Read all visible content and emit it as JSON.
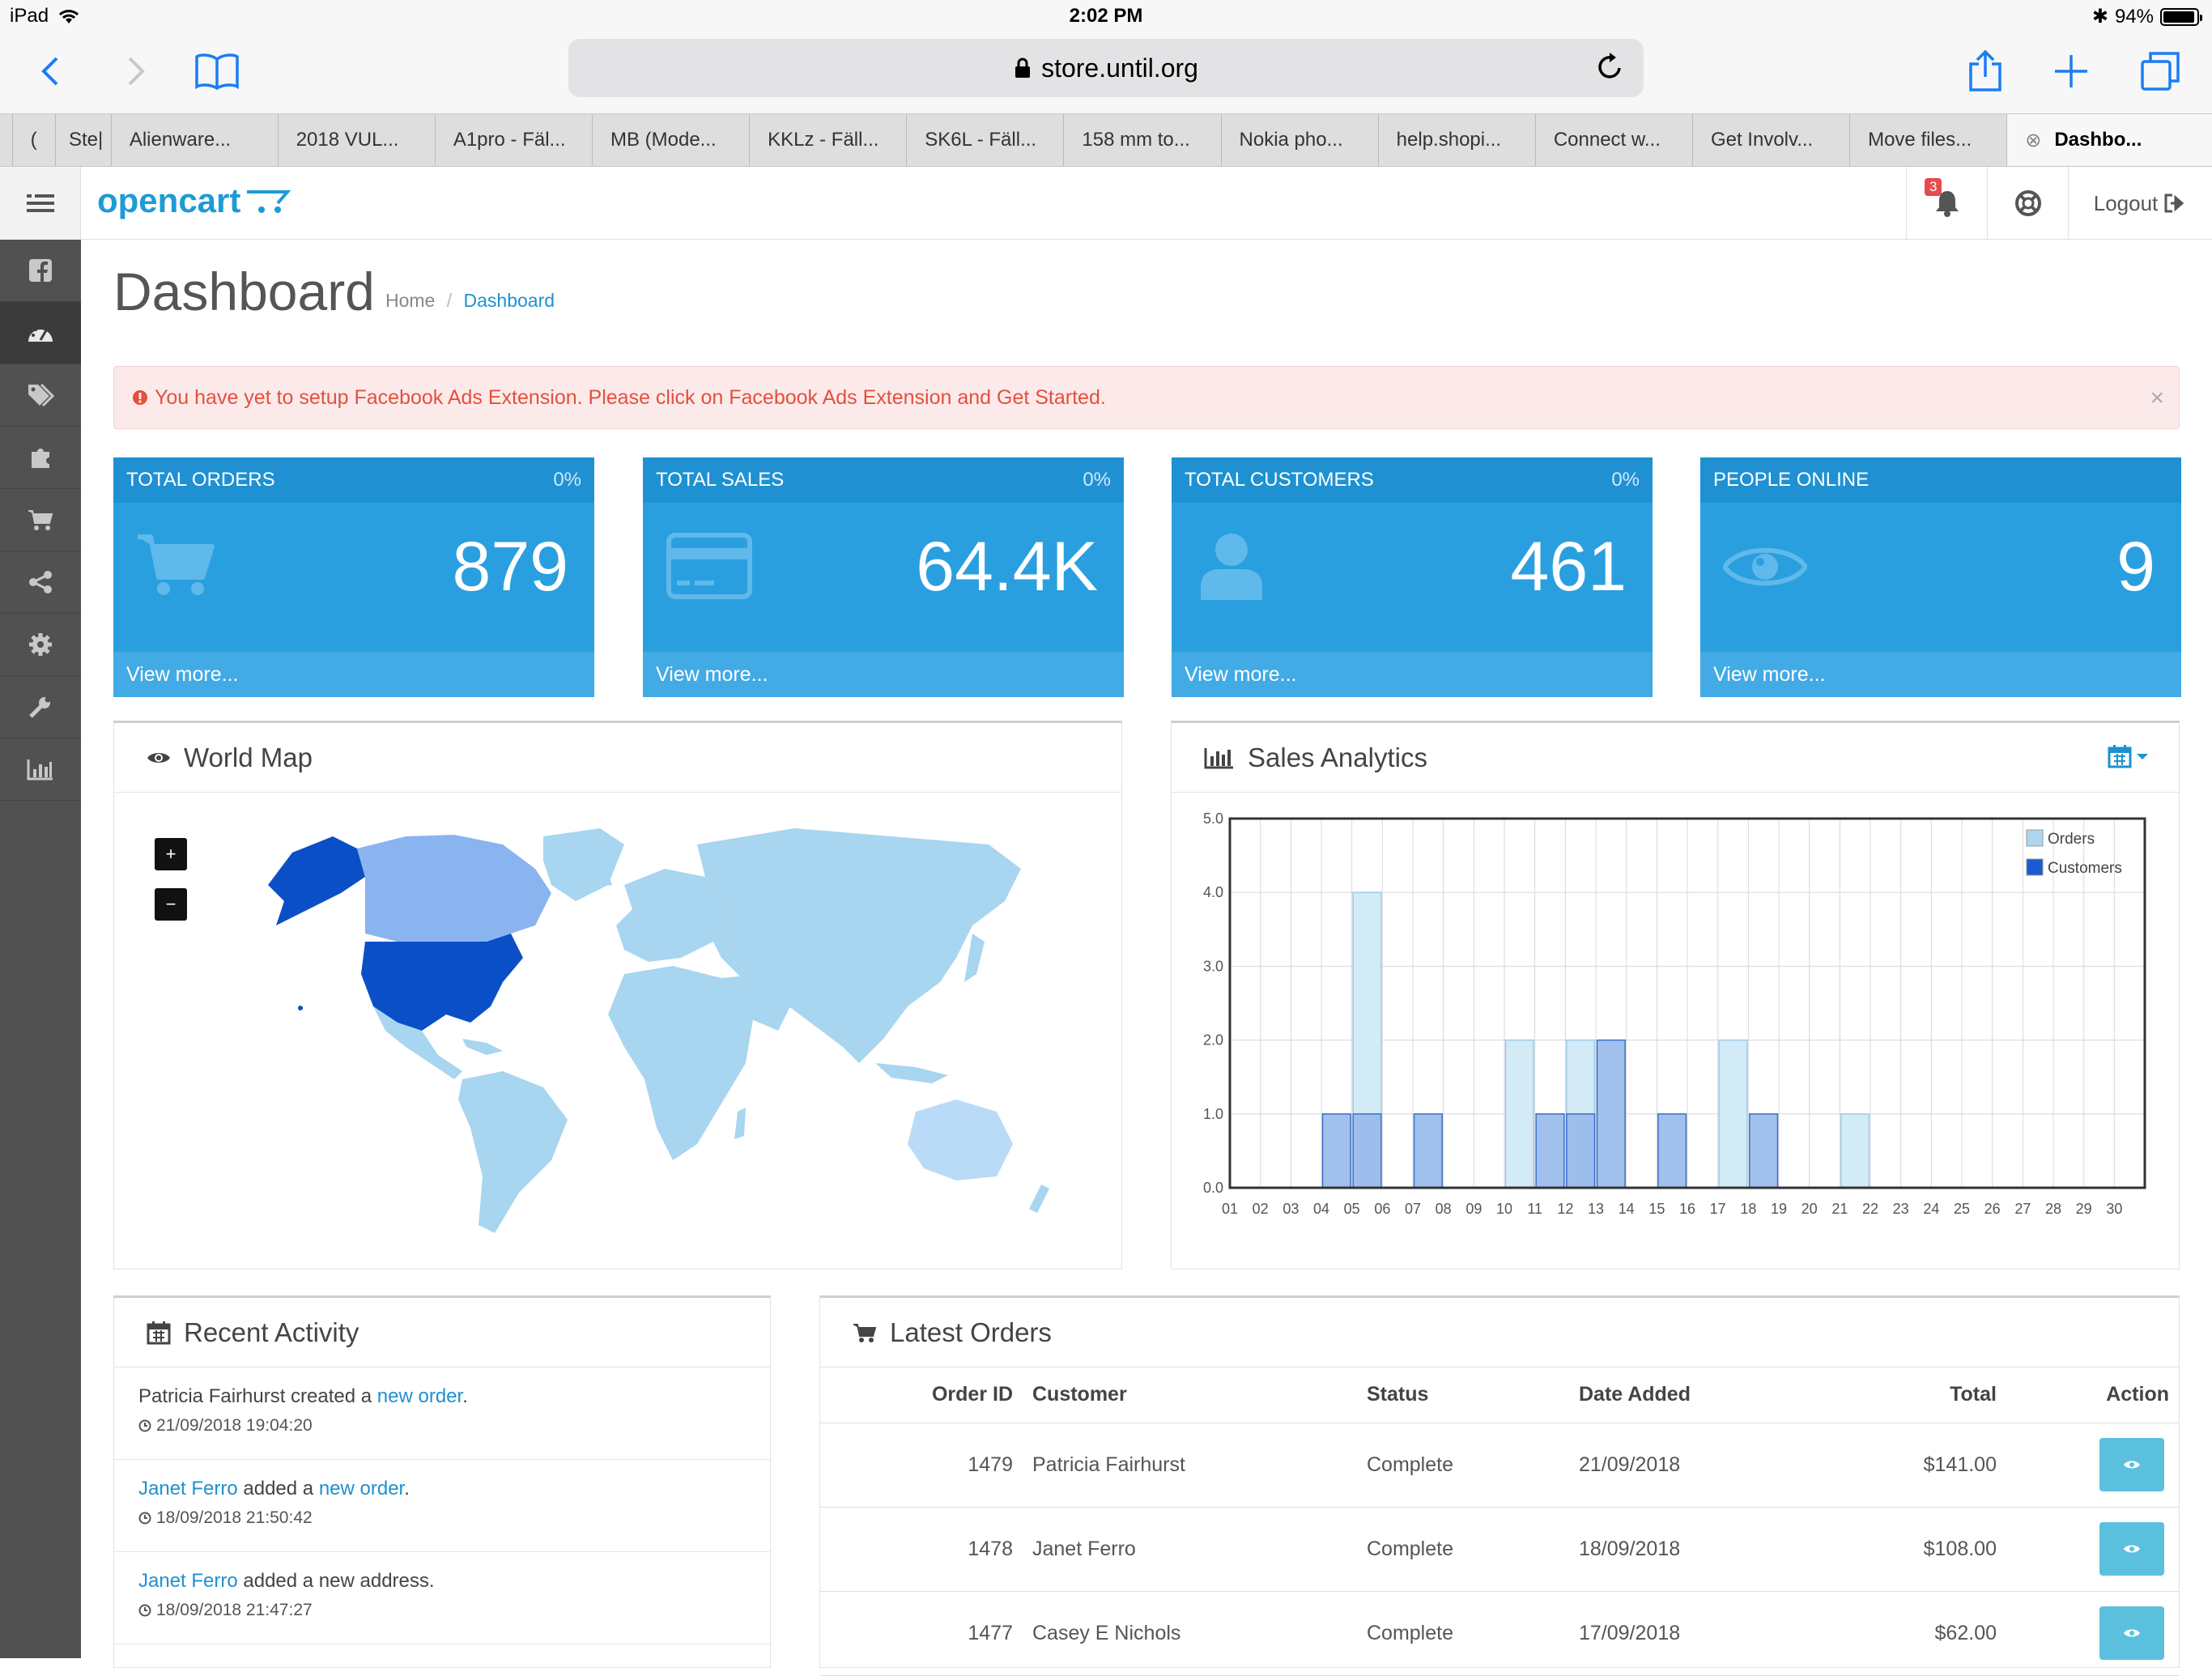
{
  "status_bar": {
    "device": "iPad",
    "time": "2:02 PM",
    "battery": "94%",
    "battery_level": 0.94
  },
  "browser": {
    "url": "store.until.org"
  },
  "tabs": [
    {
      "label": "("
    },
    {
      "label": "Ste|"
    },
    {
      "label": "Alienware..."
    },
    {
      "label": "2018 VUL..."
    },
    {
      "label": "A1pro - Fäl..."
    },
    {
      "label": "MB (Mode..."
    },
    {
      "label": "KKLz - Fäll..."
    },
    {
      "label": "SK6L - Fäll..."
    },
    {
      "label": "158 mm to..."
    },
    {
      "label": "Nokia pho..."
    },
    {
      "label": "help.shopi..."
    },
    {
      "label": "Connect w..."
    },
    {
      "label": "Get Involv..."
    },
    {
      "label": "Move files..."
    },
    {
      "label": "Dashbo..."
    }
  ],
  "header": {
    "logo": "opencart",
    "notification_count": "3",
    "logout": "Logout"
  },
  "sidebar": {
    "icons": [
      "facebook-icon",
      "dashboard-icon",
      "tags-icon",
      "puzzle-icon",
      "cart-icon",
      "share-icon",
      "cog-icon",
      "wrench-icon",
      "bar-chart-icon"
    ]
  },
  "page": {
    "title": "Dashboard",
    "breadcrumb": [
      "Home",
      "Dashboard"
    ]
  },
  "alert": {
    "text": "You have yet to setup Facebook Ads Extension. Please click on Facebook Ads Extension and Get Started."
  },
  "tiles": [
    {
      "title": "TOTAL ORDERS",
      "percent": "0%",
      "value": "879",
      "link": "View more...",
      "icon": "cart-icon"
    },
    {
      "title": "TOTAL SALES",
      "percent": "0%",
      "value": "64.4K",
      "link": "View more...",
      "icon": "credit-card-icon"
    },
    {
      "title": "TOTAL CUSTOMERS",
      "percent": "0%",
      "value": "461",
      "link": "View more...",
      "icon": "user-icon"
    },
    {
      "title": "PEOPLE ONLINE",
      "percent": "",
      "value": "9",
      "link": "View more...",
      "icon": "eye-icon"
    }
  ],
  "world_map": {
    "title": "World Map",
    "zoom_in": "+",
    "zoom_out": "−",
    "colors": {
      "us": "#0b4fc7",
      "canada": "#8ab4f0",
      "default": "#a8d5f0",
      "australia": "#b9dbf7"
    }
  },
  "sales_chart": {
    "title": "Sales Analytics"
  },
  "chart_data": {
    "type": "bar",
    "categories": [
      "01",
      "02",
      "03",
      "04",
      "05",
      "06",
      "07",
      "08",
      "09",
      "10",
      "11",
      "12",
      "13",
      "14",
      "15",
      "16",
      "17",
      "18",
      "19",
      "20",
      "21",
      "22",
      "23",
      "24",
      "25",
      "26",
      "27",
      "28",
      "29",
      "30"
    ],
    "series": [
      {
        "name": "Orders",
        "color": "#d3eaf7",
        "values": [
          0,
          0,
          0,
          0,
          4,
          0,
          0,
          0,
          0,
          2,
          0,
          2,
          0,
          0,
          0,
          0,
          2,
          0,
          0,
          0,
          1,
          0,
          0,
          0,
          0,
          0,
          0,
          0,
          0,
          0
        ]
      },
      {
        "name": "Customers",
        "color": "#97b9ea",
        "values": [
          0,
          0,
          0,
          1,
          1,
          0,
          1,
          0,
          0,
          0,
          1,
          1,
          2,
          0,
          1,
          0,
          0,
          1,
          0,
          0,
          0,
          0,
          0,
          0,
          0,
          0,
          0,
          0,
          0,
          0
        ]
      }
    ],
    "y_ticks": [
      "0.0",
      "1.0",
      "2.0",
      "3.0",
      "4.0",
      "5.0"
    ],
    "ylim": [
      0,
      5
    ],
    "grid": true,
    "legend": "top-right"
  },
  "recent_activity": {
    "title": "Recent Activity",
    "items": [
      {
        "pre": "Patricia Fairhurst created a ",
        "link1": "",
        "mid": "",
        "link2": "new order",
        "post": ".",
        "time": "21/09/2018 19:04:20"
      },
      {
        "pre": "",
        "link1": "Janet Ferro",
        "mid": " added a ",
        "link2": "new order",
        "post": ".",
        "time": "18/09/2018 21:50:42"
      },
      {
        "pre": "",
        "link1": "Janet Ferro",
        "mid": " added a new address.",
        "link2": "",
        "post": "",
        "time": "18/09/2018 21:47:27"
      }
    ]
  },
  "latest_orders": {
    "title": "Latest Orders",
    "columns": [
      "Order ID",
      "Customer",
      "Status",
      "Date Added",
      "Total",
      "Action"
    ],
    "rows": [
      {
        "id": "1479",
        "customer": "Patricia Fairhurst",
        "status": "Complete",
        "date": "21/09/2018",
        "total": "$141.00"
      },
      {
        "id": "1478",
        "customer": "Janet Ferro",
        "status": "Complete",
        "date": "18/09/2018",
        "total": "$108.00"
      },
      {
        "id": "1477",
        "customer": "Casey E Nichols",
        "status": "Complete",
        "date": "17/09/2018",
        "total": "$62.00"
      }
    ]
  }
}
